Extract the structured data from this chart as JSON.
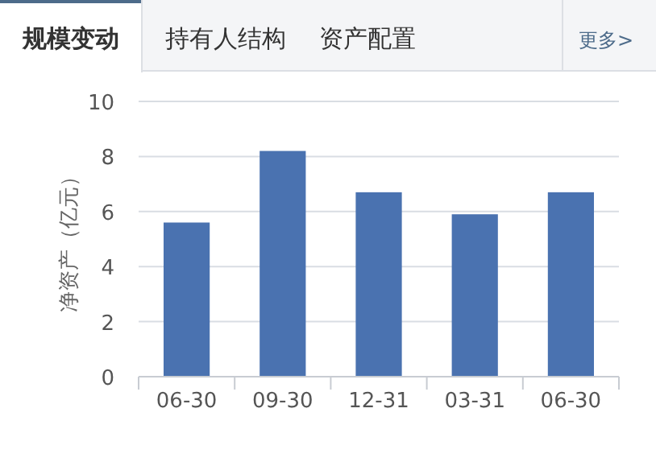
{
  "chart_data": {
    "type": "bar",
    "title": "规模变动",
    "annotations": [
      "持有人结构",
      "资产配置",
      "更多>"
    ],
    "ylabel": "净资产（亿元）",
    "categories": [
      "06-30",
      "09-30",
      "12-31",
      "03-31",
      "06-30"
    ],
    "values": [
      5.6,
      8.2,
      6.7,
      5.9,
      6.7
    ],
    "color": "#4a72b0",
    "ylim": [
      0,
      10
    ],
    "yticks": [
      0,
      2,
      4,
      6,
      8,
      10
    ],
    "grid": "y"
  }
}
